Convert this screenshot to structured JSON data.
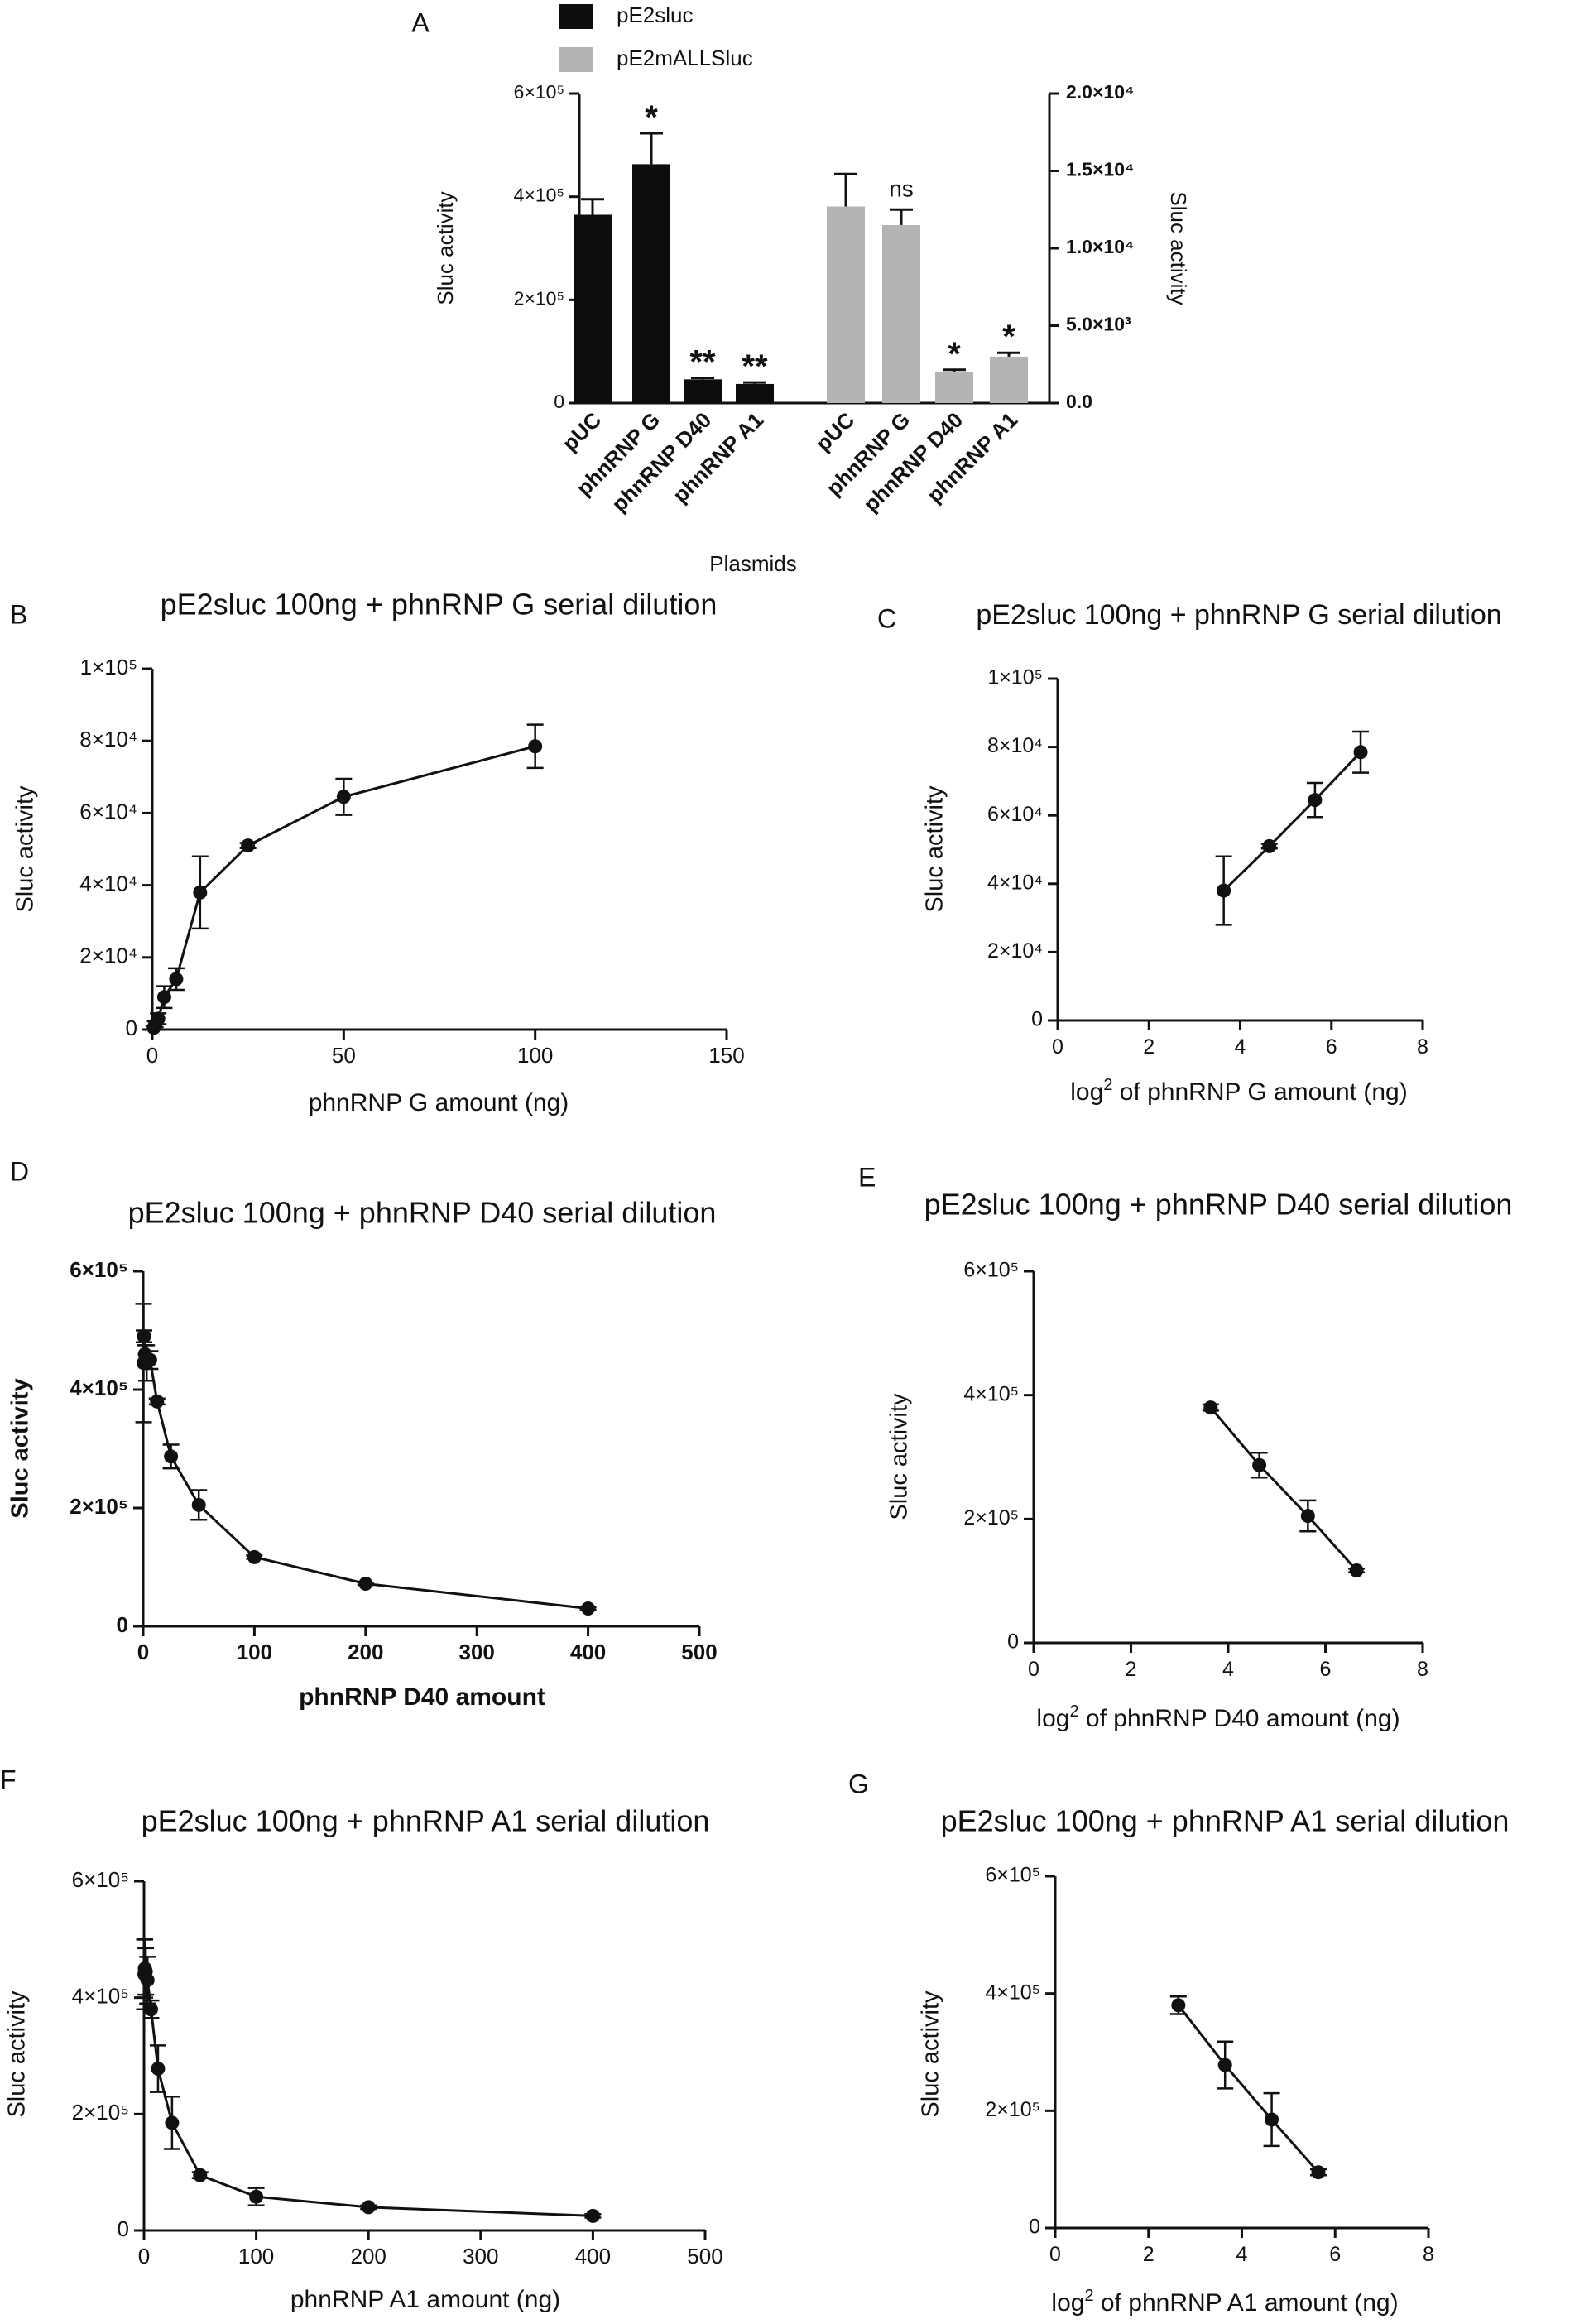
{
  "figure": {
    "colors": {
      "ink": "#111111",
      "bar_primary": "#0d0d0d",
      "bar_secondary": "#b4b4b4"
    }
  },
  "chart_data": [
    {
      "panel": "A",
      "type": "bar",
      "title": "",
      "xlabel": "Plasmids",
      "ylabel_left": "Sluc activity",
      "ylabel_right": "Sluc activity",
      "legend": [
        {
          "name": "pE2sluc",
          "color": "#0d0d0d"
        },
        {
          "name": "pE2mALLSluc",
          "color": "#b4b4b4"
        }
      ],
      "legend_position": "top",
      "series": [
        {
          "name": "pE2sluc",
          "axis": "left",
          "categories": [
            "pUC",
            "phnRNP G",
            "phnRNP D40",
            "phnRNP A1"
          ],
          "values": [
            365000,
            463000,
            46000,
            37000
          ],
          "errors": [
            30000,
            60000,
            3000,
            3000
          ],
          "annotations": [
            "",
            "*",
            "**",
            "**"
          ]
        },
        {
          "name": "pE2mALLSluc",
          "axis": "right",
          "categories": [
            "pUC",
            "phnRNP G",
            "phnRNP D40",
            "phnRNP A1"
          ],
          "values": [
            12700,
            11500,
            2000,
            3000
          ],
          "errors": [
            2100,
            1000,
            150,
            250
          ],
          "annotations": [
            "",
            "ns",
            "*",
            "*"
          ]
        }
      ],
      "ylim_left": [
        0,
        600000
      ],
      "yticks_left": [
        "0",
        "2×10⁵",
        "4×10⁵",
        "6×10⁵"
      ],
      "ylim_right": [
        0,
        20000
      ],
      "yticks_right": [
        "0.0",
        "5.0×10³",
        "1.0×10⁴",
        "1.5×10⁴",
        "2.0×10⁴"
      ]
    },
    {
      "panel": "B",
      "type": "line",
      "title": "pE2sluc 100ng + phnRNP G serial dilution",
      "xlabel": "phnRNP G amount (ng)",
      "ylabel": "Sluc activity",
      "x": [
        0.39,
        0.78,
        1.56,
        3.12,
        6.25,
        12.5,
        25,
        50,
        100
      ],
      "y": [
        500,
        1500,
        3000,
        9000,
        14000,
        38000,
        51000,
        64500,
        78500
      ],
      "errors": [
        500,
        800,
        1500,
        3000,
        3000,
        10000,
        700,
        5000,
        6000
      ],
      "xlim": [
        0,
        150
      ],
      "xticks": [
        "0",
        "50",
        "100",
        "150"
      ],
      "ylim": [
        0,
        100000
      ],
      "yticks": [
        "0",
        "2×10⁴",
        "4×10⁴",
        "6×10⁴",
        "8×10⁴",
        "1×10⁵"
      ]
    },
    {
      "panel": "C",
      "type": "line",
      "title": "pE2sluc 100ng + phnRNP G serial dilution",
      "xlabel_parts": [
        "log",
        "2",
        " of phnRNP G amount (ng)"
      ],
      "ylabel": "Sluc activity",
      "x": [
        3.64,
        4.64,
        5.64,
        6.64
      ],
      "y": [
        38000,
        51000,
        64500,
        78500
      ],
      "errors": [
        10000,
        700,
        5000,
        6000
      ],
      "xlim": [
        0,
        8
      ],
      "xticks": [
        "0",
        "2",
        "4",
        "6",
        "8"
      ],
      "ylim": [
        0,
        100000
      ],
      "yticks": [
        "0",
        "2×10⁴",
        "4×10⁴",
        "6×10⁴",
        "8×10⁴",
        "1×10⁵"
      ]
    },
    {
      "panel": "D",
      "type": "line",
      "title": "pE2sluc 100ng + phnRNP D40 serial dilution",
      "xlabel": "phnRNP D40 amount",
      "ylabel": "Sluc activity",
      "x": [
        0.39,
        0.78,
        1.56,
        3.12,
        6.25,
        12.5,
        25,
        50,
        100,
        200,
        400
      ],
      "y": [
        445000,
        490000,
        460000,
        445000,
        450000,
        380000,
        287000,
        205000,
        117000,
        72000,
        30000
      ],
      "errors": [
        100000,
        10000,
        15000,
        30000,
        15000,
        5000,
        20000,
        25000,
        3000,
        2000,
        2000
      ],
      "xlim": [
        0,
        500
      ],
      "xticks": [
        "0",
        "100",
        "200",
        "300",
        "400",
        "500"
      ],
      "ylim": [
        0,
        600000
      ],
      "yticks": [
        "0",
        "2×10⁵",
        "4×10⁵",
        "6×10⁵"
      ]
    },
    {
      "panel": "E",
      "type": "line",
      "title": "pE2sluc 100ng + phnRNP D40 serial dilution",
      "xlabel_parts": [
        "log",
        "2",
        " of phnRNP D40 amount (ng)"
      ],
      "ylabel": "Sluc activity",
      "x": [
        3.64,
        4.64,
        5.64,
        6.64
      ],
      "y": [
        380000,
        287000,
        205000,
        117000
      ],
      "errors": [
        5000,
        20000,
        25000,
        3000
      ],
      "xlim": [
        0,
        8
      ],
      "xticks": [
        "0",
        "2",
        "4",
        "6",
        "8"
      ],
      "ylim": [
        0,
        600000
      ],
      "yticks": [
        "0",
        "2×10⁵",
        "4×10⁵",
        "6×10⁵"
      ]
    },
    {
      "panel": "F",
      "type": "line",
      "title": "pE2sluc 100ng + phnRNP A1 serial dilution",
      "xlabel": "phnRNP A1 amount (ng)",
      "ylabel": "Sluc activity",
      "x": [
        0.39,
        0.78,
        1.56,
        3.12,
        6.25,
        12.5,
        25,
        50,
        100,
        200,
        400
      ],
      "y": [
        440000,
        450000,
        445000,
        430000,
        380000,
        278000,
        185000,
        95000,
        58000,
        40000,
        25000
      ],
      "errors": [
        60000,
        50000,
        40000,
        40000,
        15000,
        40000,
        45000,
        5000,
        15000,
        3000,
        3000
      ],
      "xlim": [
        0,
        500
      ],
      "xticks": [
        "0",
        "100",
        "200",
        "300",
        "400",
        "500"
      ],
      "ylim": [
        0,
        600000
      ],
      "yticks": [
        "0",
        "2×10⁵",
        "4×10⁵",
        "6×10⁵"
      ]
    },
    {
      "panel": "G",
      "type": "line",
      "title": "pE2sluc 100ng + phnRNP A1 serial dilution",
      "xlabel_parts": [
        "log",
        "2",
        " of phnRNP A1 amount (ng)"
      ],
      "ylabel": "Sluc activity",
      "x": [
        2.64,
        3.64,
        4.64,
        5.64
      ],
      "y": [
        380000,
        278000,
        185000,
        95000
      ],
      "errors": [
        15000,
        40000,
        45000,
        5000
      ],
      "xlim": [
        0,
        8
      ],
      "xticks": [
        "0",
        "2",
        "4",
        "6",
        "8"
      ],
      "ylim": [
        0,
        600000
      ],
      "yticks": [
        "0",
        "2×10⁵",
        "4×10⁵",
        "6×10⁵"
      ]
    }
  ]
}
